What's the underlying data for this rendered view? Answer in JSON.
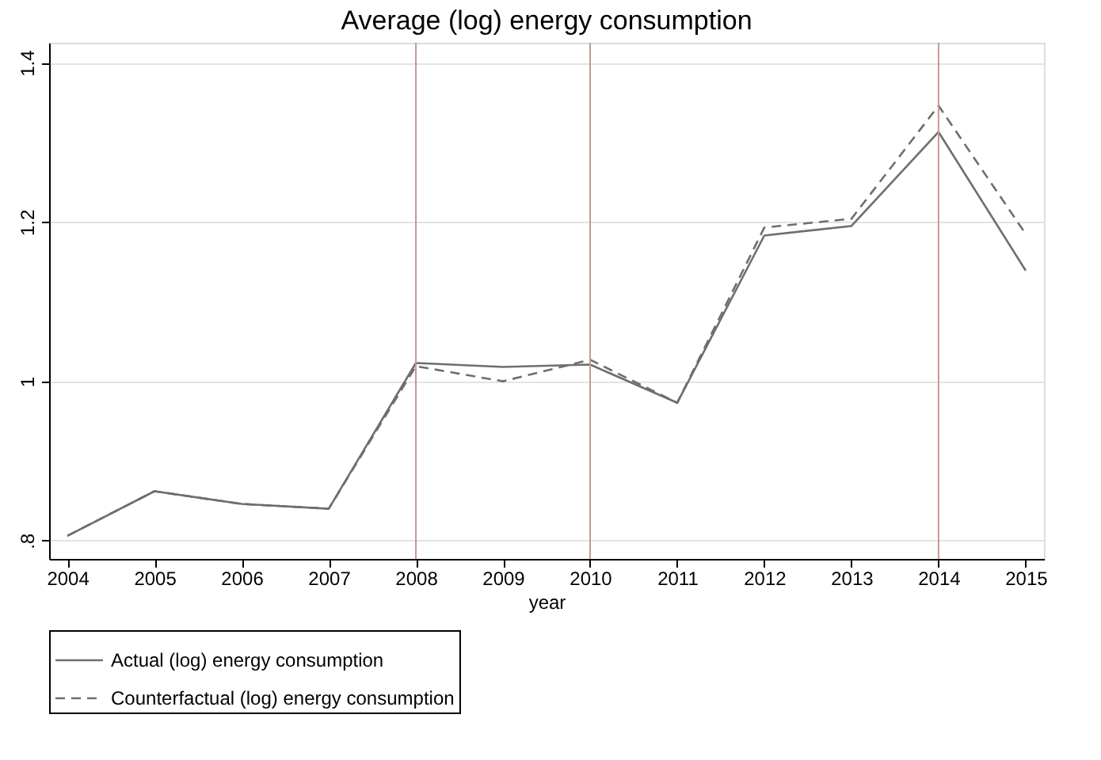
{
  "chart_data": {
    "type": "line",
    "title": "Average (log) energy consumption",
    "xlabel": "year",
    "x": [
      2004,
      2005,
      2006,
      2007,
      2008,
      2009,
      2010,
      2011,
      2012,
      2013,
      2014,
      2015
    ],
    "series": [
      {
        "name": "Actual (log) energy consumption",
        "color": "#6e6e6e",
        "line_style": "solid",
        "values": [
          0.806,
          0.862,
          0.846,
          0.84,
          1.023,
          1.018,
          1.021,
          0.973,
          1.183,
          1.195,
          1.313,
          1.139
        ]
      },
      {
        "name": "Counterfactual (log) energy consumption",
        "color": "#6e6e6e",
        "line_style": "dashed",
        "values": [
          0.806,
          0.862,
          0.846,
          0.84,
          1.019,
          1.0,
          1.027,
          0.973,
          1.193,
          1.204,
          1.346,
          1.185
        ]
      }
    ],
    "xlim": [
      2003.79,
      2015.21
    ],
    "xticks": [
      2004,
      2005,
      2006,
      2007,
      2008,
      2009,
      2010,
      2011,
      2012,
      2013,
      2014,
      2015
    ],
    "ylim": [
      0.777,
      1.425
    ],
    "yticks": [
      {
        "value": 0.8,
        "label": ".8"
      },
      {
        "value": 1,
        "label": "1"
      },
      1.2,
      1.4
    ],
    "ref_lines": [
      {
        "axis": "x",
        "value": 2008,
        "color": "#c49a96"
      },
      {
        "axis": "x",
        "value": 2010,
        "color": "#c49a96"
      },
      {
        "axis": "x",
        "value": 2014,
        "color": "#c49a96"
      }
    ],
    "grid": "y",
    "legend": "bottom"
  }
}
